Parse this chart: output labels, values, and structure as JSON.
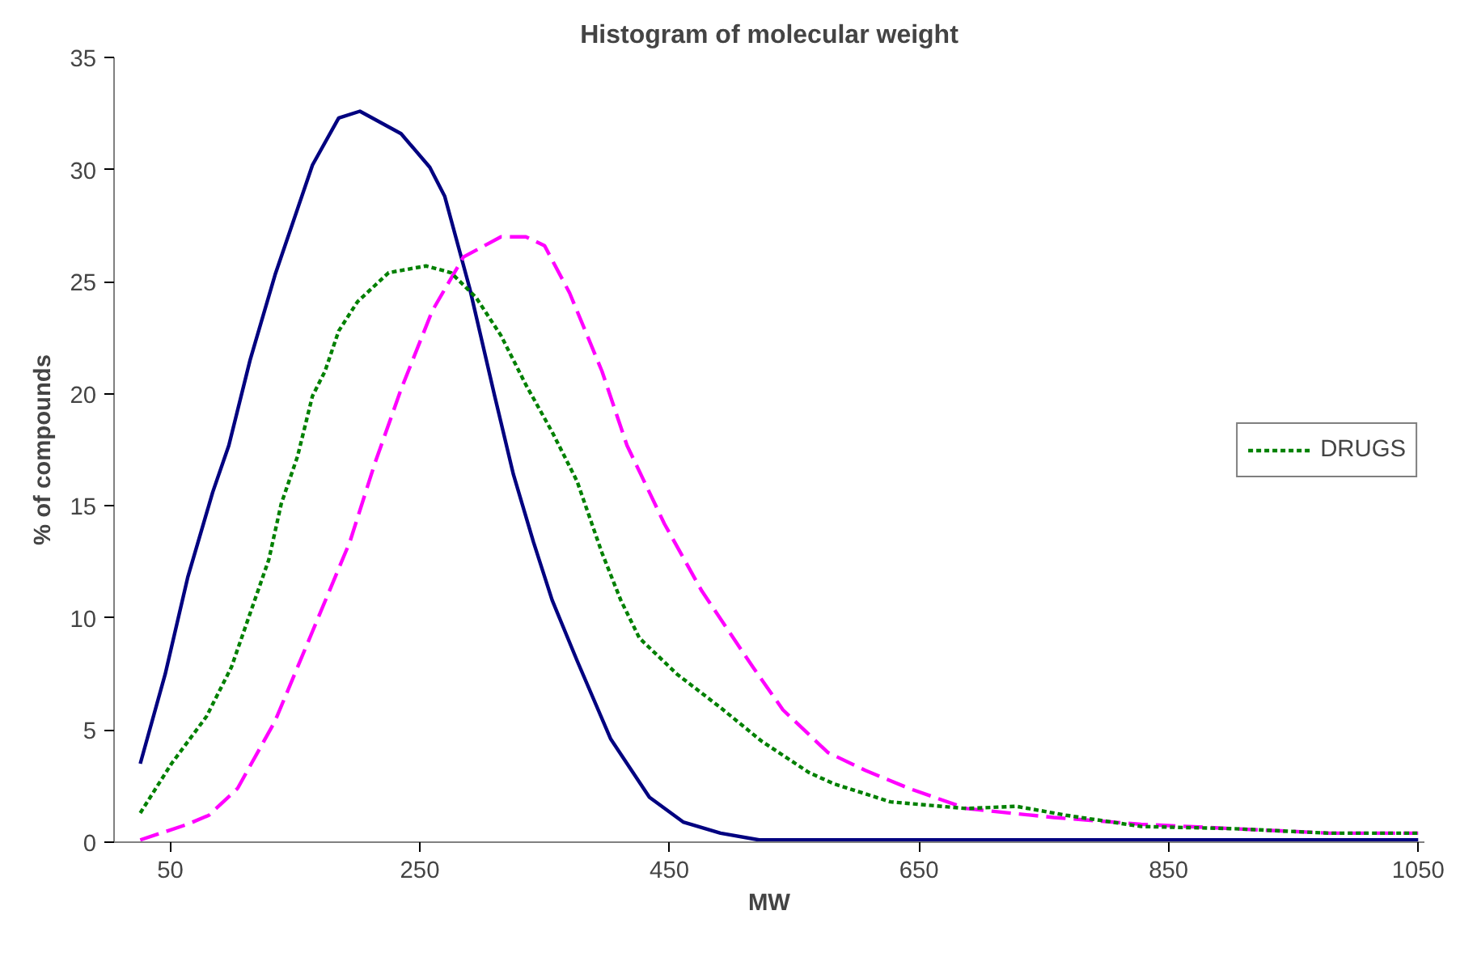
{
  "chart_data": {
    "type": "line",
    "title": "Histogram of molecular weight",
    "xlabel": "MW",
    "ylabel": "% of compounds",
    "xlim": [
      5,
      1055
    ],
    "xticks": [
      50,
      250,
      450,
      650,
      850,
      1050
    ],
    "ylim": [
      0,
      35
    ],
    "yticks": [
      0,
      5,
      10,
      15,
      20,
      25,
      30,
      35
    ],
    "grid": false,
    "legend": "right",
    "marker": "none",
    "series": [
      {
        "color": "#000080",
        "line_style": "solid",
        "x": [
          26,
          46,
          64,
          84,
          97,
          114,
          134,
          164,
          185,
          202,
          235,
          258,
          270,
          290,
          310,
          325,
          341,
          356,
          376,
          403,
          434,
          461,
          491,
          522,
          600,
          800,
          1050
        ],
        "values": [
          3.5,
          7.5,
          11.8,
          15.6,
          17.7,
          21.5,
          25.3,
          30.2,
          32.3,
          32.6,
          31.6,
          30.1,
          28.8,
          24.7,
          19.9,
          16.4,
          13.4,
          10.8,
          8.1,
          4.6,
          2.0,
          0.9,
          0.4,
          0.1,
          0.1,
          0.1,
          0.1
        ]
      },
      {
        "color": "#ff00ff",
        "line_style": "dashed",
        "x": [
          26,
          64,
          81,
          104,
          134,
          164,
          194,
          214,
          235,
          260,
          285,
          315,
          335,
          350,
          370,
          396,
          416,
          446,
          476,
          517,
          541,
          577,
          607,
          642,
          688,
          758,
          828,
          903,
          979,
          1050
        ],
        "values": [
          0.1,
          0.8,
          1.2,
          2.4,
          5.4,
          9.4,
          13.4,
          16.9,
          20.2,
          23.7,
          26.1,
          27.0,
          27.0,
          26.6,
          24.5,
          21.0,
          17.7,
          14.2,
          11.2,
          7.8,
          5.9,
          4.0,
          3.2,
          2.4,
          1.5,
          1.1,
          0.8,
          0.6,
          0.4,
          0.4
        ]
      },
      {
        "name": "DRUGS",
        "color": "#008000",
        "line_style": "dotted",
        "x": [
          26,
          51,
          79,
          99,
          114,
          129,
          139,
          152,
          164,
          174,
          185,
          200,
          225,
          255,
          275,
          295,
          315,
          335,
          356,
          376,
          396,
          411,
          426,
          456,
          491,
          524,
          562,
          582,
          627,
          688,
          728,
          768,
          828,
          903,
          979,
          1050
        ],
        "values": [
          1.3,
          3.5,
          5.6,
          7.8,
          10.2,
          12.6,
          15.1,
          17.2,
          19.9,
          21.0,
          22.8,
          24.1,
          25.4,
          25.7,
          25.4,
          24.3,
          22.6,
          20.4,
          18.3,
          16.1,
          12.9,
          10.8,
          9.1,
          7.5,
          6.0,
          4.5,
          3.1,
          2.6,
          1.8,
          1.5,
          1.6,
          1.2,
          0.7,
          0.6,
          0.4,
          0.4
        ]
      }
    ]
  }
}
